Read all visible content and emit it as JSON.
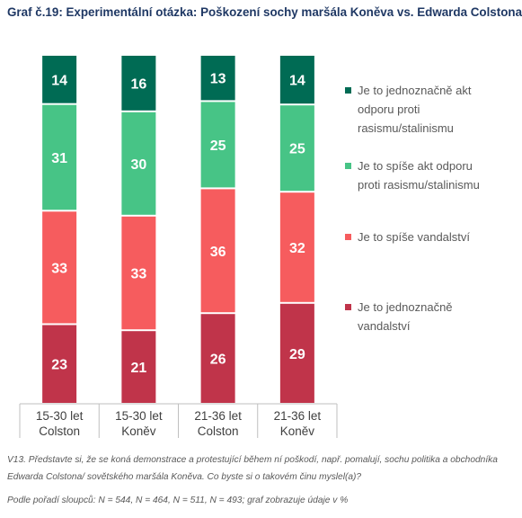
{
  "title": "Graf č.19: Experimentální otázka: Poškození sochy maršála Koněva vs. Edwarda Colstona",
  "chart_data": {
    "type": "stacked-bar",
    "categories": [
      [
        "15-30 let",
        "Colston"
      ],
      [
        "15-30 let",
        "Koněv"
      ],
      [
        "21-36 let",
        "Colston"
      ],
      [
        "21-36 let",
        "Koněv"
      ]
    ],
    "series": [
      {
        "name": "Je to jednoznačně vandalství",
        "color": "#c0344a",
        "values": [
          23,
          21,
          26,
          29
        ]
      },
      {
        "name": "Je to spíše vandalství",
        "color": "#f65c5e",
        "values": [
          33,
          33,
          36,
          32
        ]
      },
      {
        "name": "Je to spíše akt odporu proti rasismu/stalinismu",
        "color": "#47c486",
        "values": [
          31,
          30,
          25,
          25
        ]
      },
      {
        "name": "Je to jednoznačně akt odporu proti rasismu/stalinismu",
        "color": "#006b54",
        "values": [
          14,
          16,
          13,
          14
        ]
      }
    ],
    "ylim": [
      0,
      100
    ],
    "legend_position": "right"
  },
  "legend": [
    {
      "lines": [
        "Je to jednoznačně akt",
        "odporu proti",
        "rasismu/stalinismu"
      ],
      "color": "#006b54"
    },
    {
      "lines": [
        "Je to spíše akt odporu",
        "proti rasismu/stalinismu"
      ],
      "color": "#47c486"
    },
    {
      "lines": [
        "Je to spíše vandalství"
      ],
      "color": "#f65c5e"
    },
    {
      "lines": [
        "Je to jednoznačně",
        "vandalství"
      ],
      "color": "#c0344a"
    }
  ],
  "notes": {
    "question_line1": "V13. Představte si, že se koná demonstrace a protestující během ní poškodí, např. pomalují, sochu politika a obchodníka",
    "question_line2": "Edwarda Colstona/ sovětského maršála Koněva. Co byste si o takovém činu myslel(a)?",
    "sample": "Podle pořadí sloupců: N = 544, N = 464, N = 511, N = 493; graf zobrazuje údaje v %"
  }
}
